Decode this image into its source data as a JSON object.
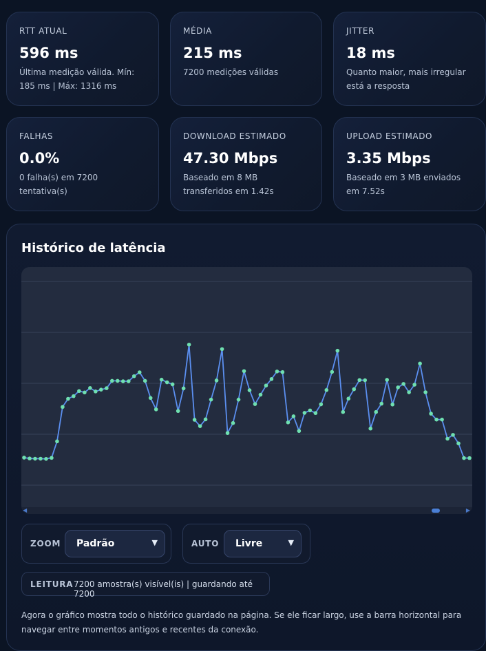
{
  "cards": [
    {
      "label": "RTT ATUAL",
      "value": "596 ms",
      "sub": "Última medição válida. Mín: 185 ms | Máx: 1316 ms"
    },
    {
      "label": "MÉDIA",
      "value": "215 ms",
      "sub": "7200 medições válidas"
    },
    {
      "label": "JITTER",
      "value": "18 ms",
      "sub": "Quanto maior, mais irregular está a resposta"
    },
    {
      "label": "FALHAS",
      "value": "0.0%",
      "sub": "0 falha(s) em 7200 tentativa(s)"
    },
    {
      "label": "DOWNLOAD ESTIMADO",
      "value": "47.30 Mbps",
      "sub": "Baseado em 8 MB transferidos em 1.42s"
    },
    {
      "label": "UPLOAD ESTIMADO",
      "value": "3.35 Mbps",
      "sub": "Baseado em 3 MB enviados em 7.52s"
    }
  ],
  "history": {
    "title": "Histórico de latência",
    "zoom_label": "ZOOM",
    "zoom_value": "Padrão",
    "auto_label": "AUTO",
    "auto_value": "Livre",
    "reading_label": "LEITURA",
    "reading_text": "7200 amostra(s) visível(is) | guardando até 7200",
    "note": "Agora o gráfico mostra todo o histórico guardado na página. Se ele ficar largo, use a barra horizontal para navegar entre momentos antigos e recentes da conexão."
  },
  "chart_data": {
    "type": "line",
    "title": "",
    "xlabel": "",
    "ylabel": "",
    "grid": true,
    "line_color": "#5b8ff0",
    "point_color": "#6fe0b0",
    "ylim": [
      0,
      100
    ],
    "values": [
      13.5,
      13.1,
      13.0,
      13.0,
      12.9,
      13.4,
      21.5,
      38.4,
      42.4,
      43.7,
      46.2,
      45.5,
      47.7,
      46.0,
      46.9,
      47.6,
      51.2,
      51.2,
      51.0,
      51.0,
      53.5,
      55.4,
      51.2,
      42.8,
      37.2,
      51.8,
      50.5,
      49.5,
      36.4,
      47.5,
      69.0,
      32.1,
      29.0,
      32.3,
      42.0,
      51.4,
      66.8,
      25.6,
      30.5,
      42.0,
      56.0,
      46.6,
      39.8,
      44.4,
      48.9,
      52.1,
      55.8,
      55.5,
      30.8,
      33.8,
      26.6,
      35.5,
      36.7,
      35.4,
      39.7,
      46.7,
      55.6,
      66.0,
      35.9,
      42.5,
      47.1,
      51.6,
      51.5,
      27.8,
      35.9,
      40.0,
      51.7,
      39.6,
      48.0,
      49.7,
      45.6,
      49.3,
      59.7,
      45.6,
      35.1,
      32.2,
      32.2,
      22.8,
      24.7,
      20.5,
      13.3,
      13.3
    ]
  }
}
